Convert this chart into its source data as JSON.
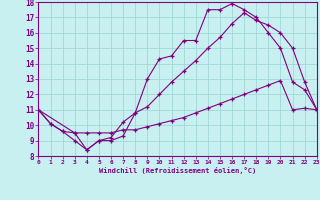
{
  "xlabel": "Windchill (Refroidissement éolien,°C)",
  "bg_color": "#c8f0f0",
  "line_color": "#800080",
  "grid_color": "#a0d8d8",
  "xlim": [
    0,
    23
  ],
  "ylim": [
    8,
    18
  ],
  "xticks": [
    0,
    1,
    2,
    3,
    4,
    5,
    6,
    7,
    8,
    9,
    10,
    11,
    12,
    13,
    14,
    15,
    16,
    17,
    18,
    19,
    20,
    21,
    22,
    23
  ],
  "yticks": [
    8,
    9,
    10,
    11,
    12,
    13,
    14,
    15,
    16,
    17,
    18
  ],
  "line1_x": [
    0,
    1,
    2,
    3,
    4,
    5,
    6,
    7,
    8,
    9,
    10,
    11,
    12,
    13,
    14,
    15,
    16,
    17,
    18,
    19,
    20,
    21,
    22,
    23
  ],
  "line1_y": [
    11.0,
    10.1,
    9.6,
    9.5,
    9.5,
    9.5,
    9.5,
    9.7,
    9.7,
    9.9,
    10.1,
    10.3,
    10.5,
    10.8,
    11.1,
    11.4,
    11.7,
    12.0,
    12.3,
    12.6,
    12.9,
    11.0,
    11.1,
    11.0
  ],
  "line2_x": [
    0,
    1,
    2,
    3,
    4,
    5,
    6,
    7,
    8,
    9,
    10,
    11,
    12,
    13,
    14,
    15,
    16,
    17,
    18,
    19,
    20,
    21,
    22,
    23
  ],
  "line2_y": [
    11.0,
    10.1,
    9.6,
    9.0,
    8.4,
    9.0,
    9.0,
    9.3,
    10.8,
    13.0,
    14.3,
    14.5,
    15.5,
    15.5,
    17.5,
    17.5,
    17.9,
    17.5,
    17.0,
    16.0,
    15.0,
    12.8,
    12.3,
    11.0
  ],
  "line3_x": [
    0,
    3,
    4,
    5,
    6,
    7,
    8,
    9,
    10,
    11,
    12,
    13,
    14,
    15,
    16,
    17,
    18,
    19,
    20,
    21,
    22,
    23
  ],
  "line3_y": [
    11.0,
    9.5,
    8.4,
    9.0,
    9.2,
    10.2,
    10.8,
    11.2,
    12.0,
    12.8,
    13.5,
    14.2,
    15.0,
    15.7,
    16.6,
    17.3,
    16.8,
    16.5,
    16.0,
    15.0,
    12.8,
    11.0
  ]
}
